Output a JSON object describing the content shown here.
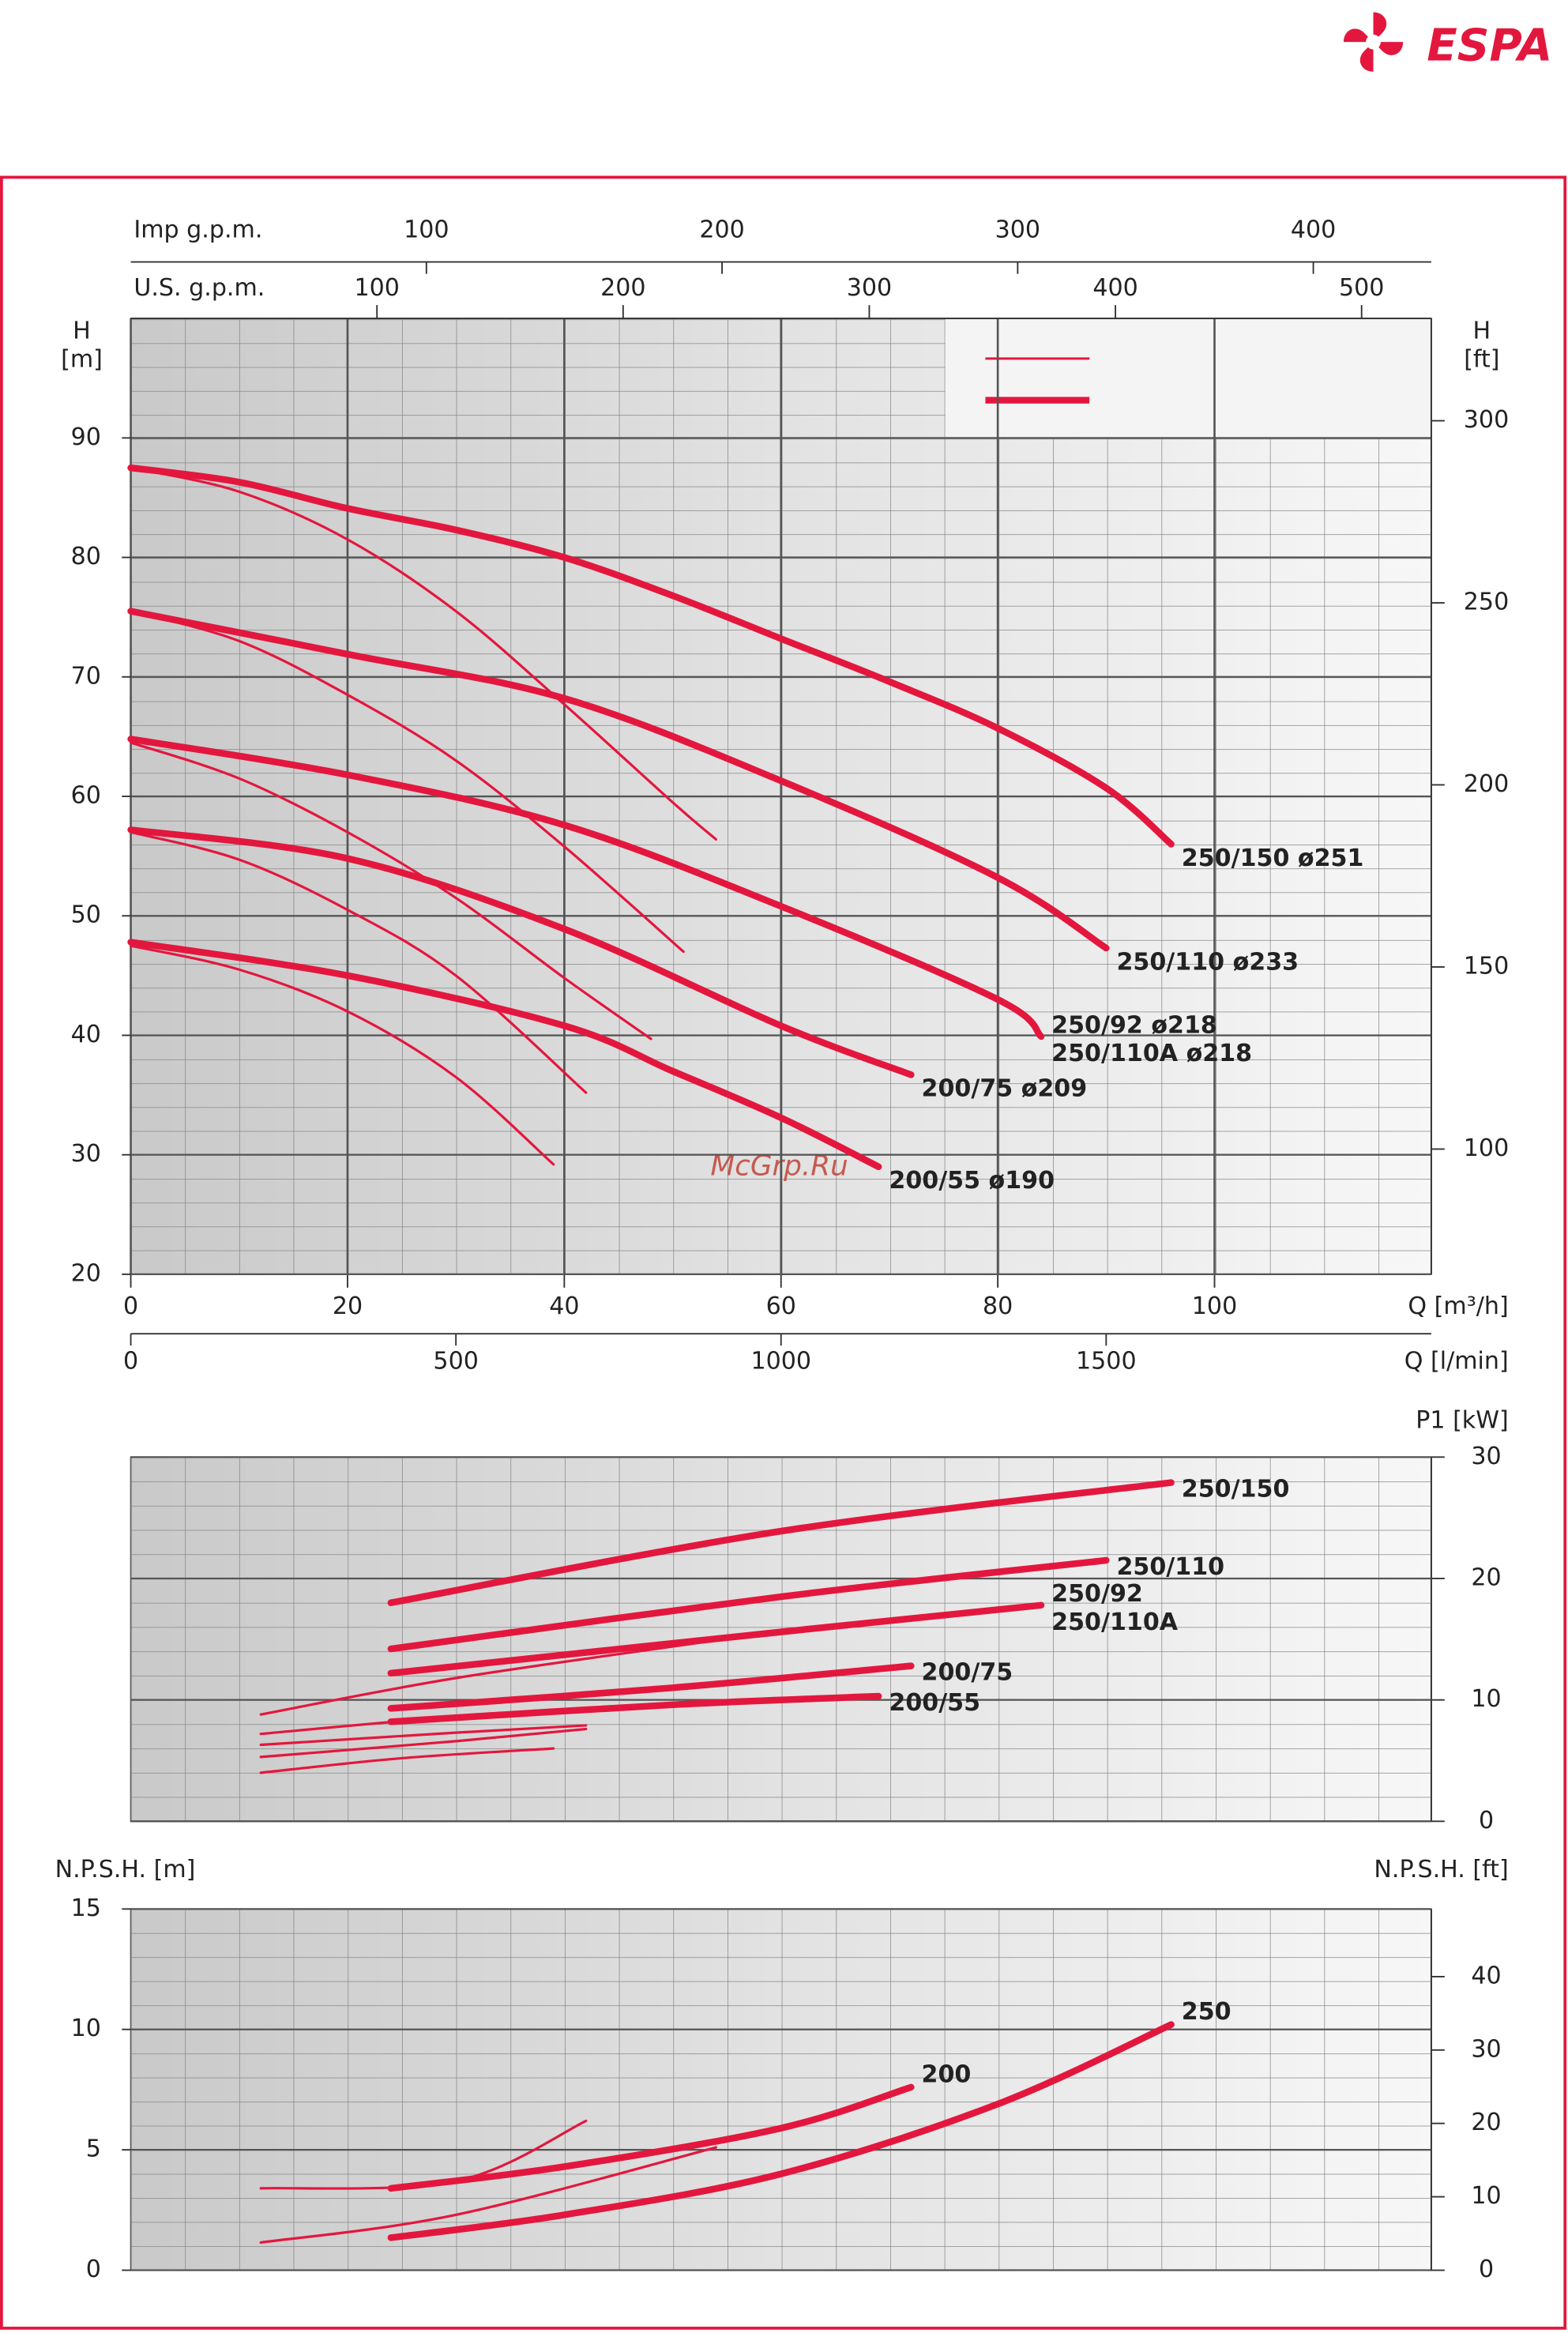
{
  "logo": "ESPA",
  "watermark": "McGrp.Ru",
  "chart_data": [
    {
      "type": "line",
      "x_label": "Q [m³/h]",
      "y_label": [
        "H",
        "[m]"
      ],
      "y2_label": [
        "H",
        "[ft]"
      ],
      "xlim": [
        0,
        120
      ],
      "xticks": [
        0,
        20,
        40,
        60,
        80,
        100
      ],
      "ylim": [
        20,
        100
      ],
      "yticks": [
        20,
        30,
        40,
        50,
        60,
        70,
        80,
        90
      ],
      "y2lim": [
        65.62,
        328.08
      ],
      "y2ticks": [
        100,
        150,
        200,
        250,
        300
      ],
      "extra_x_axes": [
        {
          "label": "Q [l/min]",
          "position": "bottom",
          "xlim": [
            0,
            2000
          ],
          "xticks": [
            0,
            500,
            1000,
            1500
          ]
        },
        {
          "label": "U.S. g.p.m.",
          "position": "top",
          "xlim": [
            0,
            528.3
          ],
          "xticks": [
            100,
            200,
            300,
            400,
            500
          ]
        },
        {
          "label": "Imp g.p.m.",
          "position": "top",
          "xlim": [
            0,
            439.9
          ],
          "xticks": [
            100,
            200,
            300,
            400
          ]
        }
      ],
      "series": [
        {
          "labels": [
            "250/150  ø251"
          ],
          "style": "thick",
          "color": "#e3173e",
          "x": [
            0,
            10,
            20,
            30,
            40,
            50,
            60,
            70,
            80,
            90,
            96
          ],
          "values": [
            87.5,
            86.3,
            84.1,
            82.3,
            80,
            76.8,
            73.2,
            69.6,
            65.7,
            60.7,
            56
          ]
        },
        {
          "labels": [
            "250/110  ø233"
          ],
          "style": "thick",
          "color": "#e3173e",
          "x": [
            0,
            20,
            40,
            60,
            80,
            90
          ],
          "values": [
            75.5,
            71.9,
            68.2,
            61.3,
            53.2,
            47.3
          ]
        },
        {
          "labels": [
            "250/92  ø218",
            "250/110A  ø218"
          ],
          "style": "thick",
          "color": "#e3173e",
          "x": [
            0,
            20,
            40,
            60,
            80,
            84
          ],
          "values": [
            64.8,
            61.8,
            57.6,
            50.8,
            43,
            39.9
          ]
        },
        {
          "labels": [
            "200/75  ø209"
          ],
          "style": "thick",
          "color": "#e3173e",
          "x": [
            0,
            20,
            40,
            60,
            72
          ],
          "values": [
            57.2,
            54.8,
            48.9,
            40.8,
            36.7
          ]
        },
        {
          "labels": [
            "200/55  ø190"
          ],
          "style": "thick",
          "color": "#e3173e",
          "x": [
            0,
            20,
            40,
            50,
            60,
            69
          ],
          "values": [
            47.8,
            45,
            40.8,
            37,
            33.1,
            29
          ]
        },
        {
          "style": "thin",
          "color": "#e3173e",
          "x": [
            0,
            10,
            20,
            30,
            40,
            50,
            54
          ],
          "values": [
            87.5,
            85.5,
            81.5,
            75.5,
            67.7,
            59.5,
            56.4
          ]
        },
        {
          "style": "thin",
          "color": "#e3173e",
          "x": [
            0,
            10,
            20,
            30,
            40,
            51
          ],
          "values": [
            75.5,
            73,
            68.5,
            63,
            55.8,
            47
          ]
        },
        {
          "style": "thin",
          "color": "#e3173e",
          "x": [
            0,
            10,
            20,
            30,
            40,
            48
          ],
          "values": [
            64.5,
            61.5,
            57,
            51.5,
            44.8,
            39.7
          ]
        },
        {
          "style": "thin",
          "color": "#e3173e",
          "x": [
            0,
            10,
            20,
            30,
            42
          ],
          "values": [
            57,
            54.7,
            50.5,
            45,
            35.2
          ]
        },
        {
          "style": "thin",
          "color": "#e3173e",
          "x": [
            0,
            10,
            20,
            30,
            39
          ],
          "values": [
            47.5,
            45.5,
            42,
            36.5,
            29.2
          ]
        }
      ]
    },
    {
      "type": "line",
      "y2_label": [
        "P1 [kW]"
      ],
      "xlim": [
        0,
        120
      ],
      "y2lim": [
        0,
        30
      ],
      "y2ticks": [
        0,
        10,
        20,
        30
      ],
      "series": [
        {
          "labels": [
            "250/150"
          ],
          "style": "thick",
          "color": "#e3173e",
          "x": [
            24,
            60,
            96
          ],
          "values": [
            18,
            23.9,
            27.9
          ]
        },
        {
          "labels": [
            "250/110"
          ],
          "style": "thick",
          "color": "#e3173e",
          "x": [
            24,
            60,
            90
          ],
          "values": [
            14.2,
            18.5,
            21.5
          ]
        },
        {
          "labels": [
            "250/92",
            "250/110A"
          ],
          "style": "thick",
          "color": "#e3173e",
          "x": [
            24,
            60,
            84
          ],
          "values": [
            12.2,
            15.6,
            17.8
          ]
        },
        {
          "labels": [
            "200/75"
          ],
          "style": "thick",
          "color": "#e3173e",
          "x": [
            24,
            50,
            72
          ],
          "values": [
            9.3,
            11,
            12.8
          ]
        },
        {
          "labels": [
            "200/55"
          ],
          "style": "thick",
          "color": "#e3173e",
          "x": [
            24,
            50,
            69
          ],
          "values": [
            8.2,
            9.6,
            10.3
          ]
        },
        {
          "style": "thin",
          "color": "#e3173e",
          "x": [
            12,
            30,
            54
          ],
          "values": [
            8.8,
            11.8,
            14.9
          ]
        },
        {
          "style": "thin",
          "color": "#e3173e",
          "x": [
            12,
            30,
            48
          ],
          "values": [
            7.2,
            8.6,
            9.4
          ]
        },
        {
          "style": "thin",
          "color": "#e3173e",
          "x": [
            12,
            30,
            42
          ],
          "values": [
            6.3,
            7.3,
            7.9
          ]
        },
        {
          "style": "thin",
          "color": "#e3173e",
          "x": [
            12,
            30,
            42
          ],
          "values": [
            5.3,
            6.6,
            7.6
          ]
        },
        {
          "style": "thin",
          "color": "#e3173e",
          "x": [
            12,
            25,
            39
          ],
          "values": [
            4,
            5.2,
            6
          ]
        }
      ]
    },
    {
      "type": "line",
      "y_label": [
        "N.P.S.H. [m]"
      ],
      "y2_label": [
        "N.P.S.H. [ft]"
      ],
      "xlim": [
        0,
        120
      ],
      "ylim": [
        0,
        15
      ],
      "yticks": [
        0,
        5,
        10,
        15
      ],
      "y2lim": [
        0,
        49.21
      ],
      "y2ticks": [
        0,
        10,
        20,
        30,
        40
      ],
      "series": [
        {
          "labels": [
            "250"
          ],
          "style": "thick",
          "color": "#e3173e",
          "x": [
            24,
            40,
            60,
            80,
            96
          ],
          "values": [
            1.35,
            2.3,
            4,
            6.9,
            10.2
          ]
        },
        {
          "labels": [
            "200"
          ],
          "style": "thick",
          "color": "#e3173e",
          "x": [
            24,
            40,
            60,
            72
          ],
          "values": [
            3.4,
            4.3,
            5.9,
            7.6
          ]
        },
        {
          "style": "thin",
          "color": "#e3173e",
          "x": [
            12,
            30,
            42
          ],
          "values": [
            3.4,
            3.7,
            6.2
          ]
        },
        {
          "style": "thin",
          "color": "#e3173e",
          "x": [
            12,
            30,
            54
          ],
          "values": [
            1.15,
            2.3,
            5.1
          ]
        }
      ]
    }
  ]
}
